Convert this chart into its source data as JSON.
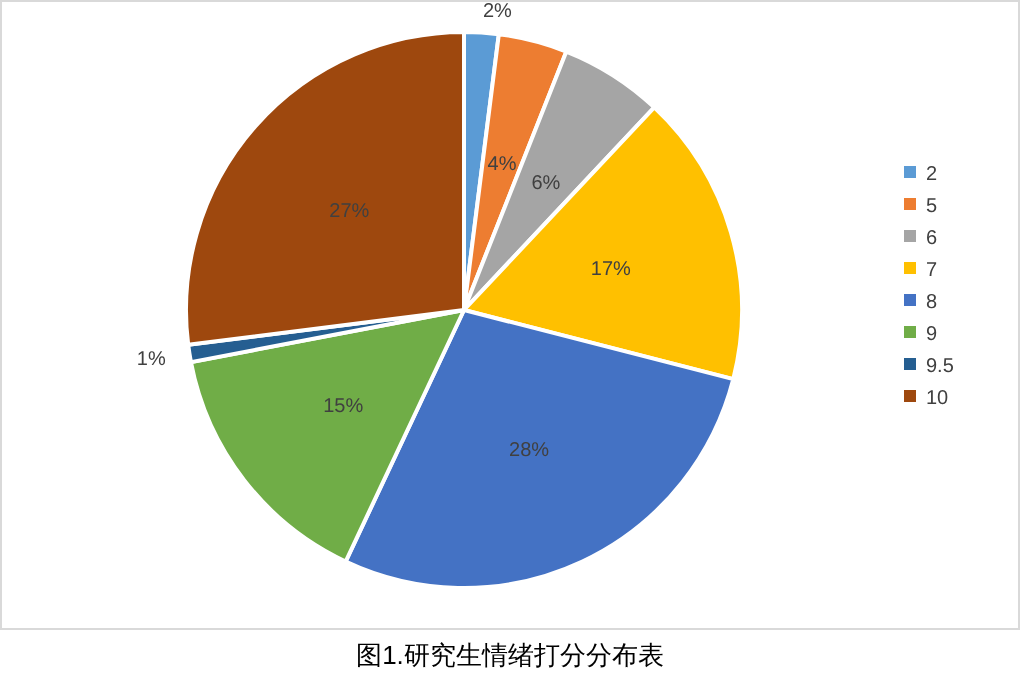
{
  "chart_data": {
    "type": "pie",
    "title": "图1.研究生情绪打分分布表",
    "categories": [
      "2",
      "5",
      "6",
      "7",
      "8",
      "9",
      "9.5",
      "10"
    ],
    "values": [
      2,
      4,
      6,
      17,
      28,
      15,
      1,
      27
    ],
    "colors": [
      "#5b9bd5",
      "#ed7d31",
      "#a5a5a5",
      "#ffc000",
      "#4472c4",
      "#70ad47",
      "#255e91",
      "#9e480e"
    ],
    "value_labels": [
      "2%",
      "4%",
      "6%",
      "17%",
      "28%",
      "15%",
      "1%",
      "27%"
    ],
    "legend": "right"
  }
}
